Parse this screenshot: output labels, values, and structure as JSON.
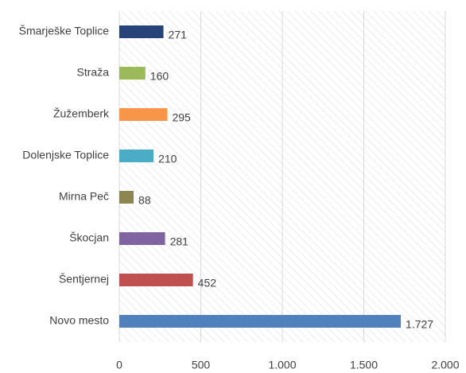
{
  "chart_data": {
    "type": "bar",
    "orientation": "horizontal",
    "categories": [
      "Šmarješke Toplice",
      "Straža",
      "Žužemberk",
      "Dolenjske Toplice",
      "Mirna Peč",
      "Škocjan",
      "Šentjernej",
      "Novo mesto"
    ],
    "values": [
      271,
      160,
      295,
      210,
      88,
      281,
      452,
      1727
    ],
    "value_labels": [
      "271",
      "160",
      "295",
      "210",
      "88",
      "281",
      "452",
      "1.727"
    ],
    "colors": [
      "#264478",
      "#9bbb59",
      "#f79646",
      "#4bacc6",
      "#8c8750",
      "#8064a2",
      "#c0504d",
      "#4f81bd"
    ],
    "xlim": [
      0,
      2000
    ],
    "xticks": [
      0,
      500,
      {
        "value": 1000,
        "label": "1.000"
      },
      {
        "value": 1500,
        "label": "1.500"
      },
      {
        "value": 2000,
        "label": "2.000"
      }
    ],
    "grid": true
  }
}
